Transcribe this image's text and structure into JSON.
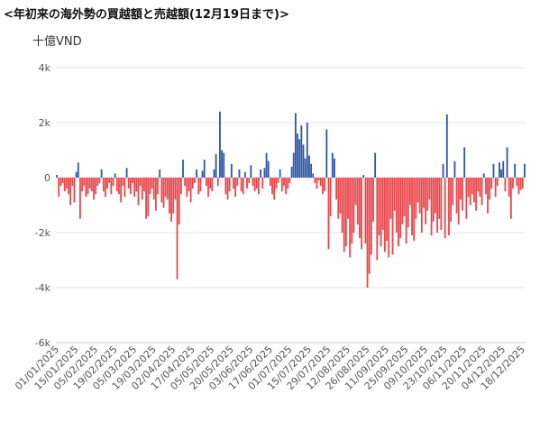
{
  "chart_data": {
    "type": "bar",
    "title": "<年初来の海外勢の買越額と売越額(12月19日まで)>",
    "y_label": "十億VND",
    "colors": {
      "positive": "#2e56a6",
      "negative": "#e8474c"
    },
    "ylim": [
      -6000,
      4000
    ],
    "yticks": [
      {
        "value": 4000,
        "label": "4k"
      },
      {
        "value": 2000,
        "label": "2k"
      },
      0,
      {
        "value": -2000,
        "label": "-2k"
      },
      {
        "value": -4000,
        "label": "-4k"
      },
      {
        "value": -6000,
        "label": "-6k"
      }
    ],
    "grid": true,
    "categories": [
      "01/01/2025",
      null,
      null,
      null,
      null,
      null,
      null,
      null,
      null,
      null,
      "15/01/2025",
      null,
      null,
      null,
      null,
      null,
      null,
      null,
      null,
      null,
      "05/02/2025",
      null,
      null,
      null,
      null,
      null,
      null,
      null,
      null,
      null,
      "19/02/2025",
      null,
      null,
      null,
      null,
      null,
      null,
      null,
      null,
      null,
      "05/03/2025",
      null,
      null,
      null,
      null,
      null,
      null,
      null,
      null,
      null,
      "19/03/2025",
      null,
      null,
      null,
      null,
      null,
      null,
      null,
      null,
      null,
      "02/04/2025",
      null,
      null,
      null,
      null,
      null,
      null,
      null,
      null,
      null,
      "17/04/2025",
      null,
      null,
      null,
      null,
      null,
      null,
      null,
      null,
      null,
      "05/05/2025",
      null,
      null,
      null,
      null,
      null,
      null,
      null,
      null,
      null,
      "20/05/2025",
      null,
      null,
      null,
      null,
      null,
      null,
      null,
      null,
      null,
      "03/06/2025",
      null,
      null,
      null,
      null,
      null,
      null,
      null,
      null,
      null,
      "17/06/2025",
      null,
      null,
      null,
      null,
      null,
      null,
      null,
      null,
      null,
      "01/07/2025",
      null,
      null,
      null,
      null,
      null,
      null,
      null,
      null,
      null,
      "15/07/2025",
      null,
      null,
      null,
      null,
      null,
      null,
      null,
      null,
      null,
      "29/07/2025",
      null,
      null,
      null,
      null,
      null,
      null,
      null,
      null,
      null,
      "12/08/2025",
      null,
      null,
      null,
      null,
      null,
      null,
      null,
      null,
      null,
      "26/08/2025",
      null,
      null,
      null,
      null,
      null,
      null,
      null,
      null,
      null,
      "11/09/2025",
      null,
      null,
      null,
      null,
      null,
      null,
      null,
      null,
      null,
      "25/09/2025",
      null,
      null,
      null,
      null,
      null,
      null,
      null,
      null,
      null,
      "09/10/2025",
      null,
      null,
      null,
      null,
      null,
      null,
      null,
      null,
      null,
      "23/10/2025",
      null,
      null,
      null,
      null,
      null,
      null,
      null,
      null,
      null,
      "06/11/2025",
      null,
      null,
      null,
      null,
      null,
      null,
      null,
      null,
      null,
      "20/11/2025",
      null,
      null,
      null,
      null,
      null,
      null,
      null,
      null,
      null,
      "04/12/2025",
      null,
      null,
      null,
      null,
      null,
      null,
      null,
      null,
      null,
      "18/12/2025",
      null
    ],
    "values": [
      100,
      -700,
      -300,
      -200,
      -500,
      -400,
      -600,
      -1000,
      -300,
      -900,
      200,
      550,
      -1500,
      -500,
      -300,
      -700,
      -600,
      -400,
      -500,
      -800,
      -600,
      -300,
      -200,
      300,
      -500,
      -700,
      -400,
      -200,
      -600,
      -300,
      150,
      -500,
      -600,
      -900,
      -300,
      -700,
      350,
      -400,
      -600,
      -200,
      -700,
      -500,
      -1000,
      -300,
      -800,
      -500,
      -1500,
      -1400,
      -600,
      -400,
      -800,
      -1200,
      -600,
      300,
      -900,
      -1100,
      -700,
      -800,
      -1300,
      -1600,
      -1300,
      -800,
      -3700,
      -1700,
      -600,
      650,
      -300,
      -700,
      -500,
      -900,
      -400,
      -200,
      300,
      -600,
      -500,
      250,
      650,
      -300,
      -700,
      -400,
      -500,
      300,
      850,
      -300,
      2400,
      1000,
      900,
      -600,
      -800,
      -500,
      500,
      -400,
      -700,
      -300,
      300,
      -500,
      -600,
      200,
      -400,
      -200,
      450,
      -300,
      -500,
      -400,
      -600,
      300,
      -400,
      350,
      900,
      600,
      -300,
      -600,
      -800,
      -400,
      -200,
      300,
      -500,
      -300,
      -600,
      -400,
      -200,
      400,
      900,
      2350,
      1600,
      1400,
      1900,
      1200,
      700,
      2000,
      800,
      500,
      150,
      -200,
      -400,
      -100,
      -300,
      -600,
      -500,
      1750,
      -2600,
      -1400,
      900,
      700,
      -800,
      -1500,
      -1300,
      -2000,
      -2700,
      -2500,
      -1500,
      -2900,
      -2400,
      -2000,
      -1000,
      -1700,
      -2200,
      -2600,
      100,
      -2400,
      -4000,
      -3500,
      -2800,
      -1600,
      900,
      -3000,
      -2100,
      -2500,
      -1900,
      -2700,
      -2300,
      -2900,
      -1500,
      -2800,
      -1200,
      -2000,
      -2500,
      -2200,
      -1700,
      -1400,
      -2400,
      -1800,
      -1000,
      -2100,
      -2300,
      -1500,
      -900,
      -1300,
      -2000,
      -1100,
      -1700,
      -1200,
      -800,
      -2100,
      -1600,
      -1300,
      -2000,
      -1500,
      -1900,
      500,
      -2200,
      2300,
      -2100,
      -1600,
      -1000,
      600,
      -1300,
      -1700,
      -800,
      -1200,
      1100,
      -1500,
      -700,
      -1000,
      -600,
      -900,
      -1200,
      -500,
      -700,
      -1000,
      150,
      -600,
      -1300,
      -800,
      -400,
      500,
      -700,
      -300,
      550,
      300,
      600,
      -500,
      1100,
      -700,
      -1500,
      -400,
      500,
      -300,
      -600,
      -450,
      -400,
      500
    ]
  }
}
